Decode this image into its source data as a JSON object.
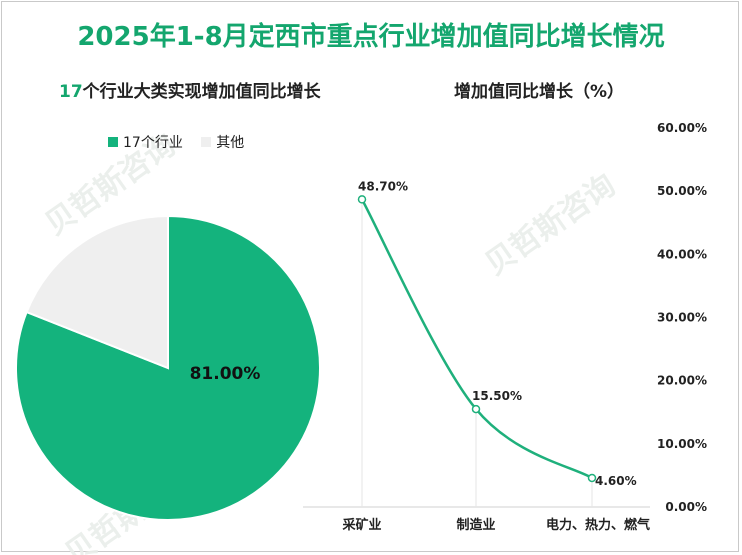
{
  "title": "2025年1-8月定西市重点行业增加值同比增长情况",
  "left_panel": {
    "subtitle_highlight": "17",
    "subtitle_rest": "个行业大类实现增加值同比增长",
    "legend": [
      {
        "label": "17个行业",
        "color": "#14b37d"
      },
      {
        "label": "其他",
        "color": "#efefef"
      }
    ]
  },
  "right_panel": {
    "subtitle": "增加值同比增长（%）"
  },
  "chart_data": [
    {
      "type": "pie",
      "slices": [
        {
          "label": "17个行业",
          "value": 81.0,
          "display": "81.00%",
          "color": "#14b37d"
        },
        {
          "label": "其他",
          "value": 19.0,
          "color": "#efefef"
        }
      ]
    },
    {
      "type": "line",
      "categories": [
        "采矿业",
        "制造业",
        "电力、热力、燃气"
      ],
      "values": [
        48.7,
        15.5,
        4.6
      ],
      "value_labels": [
        "48.70%",
        "15.50%",
        "4.60%"
      ],
      "ylim": [
        0,
        60
      ],
      "y_ticks": [
        "0.00%",
        "10.00%",
        "20.00%",
        "30.00%",
        "40.00%",
        "50.00%",
        "60.00%"
      ],
      "y_axis_position": "right",
      "color": "#1fb07c",
      "grid": false
    }
  ],
  "watermark": "贝哲斯咨询"
}
